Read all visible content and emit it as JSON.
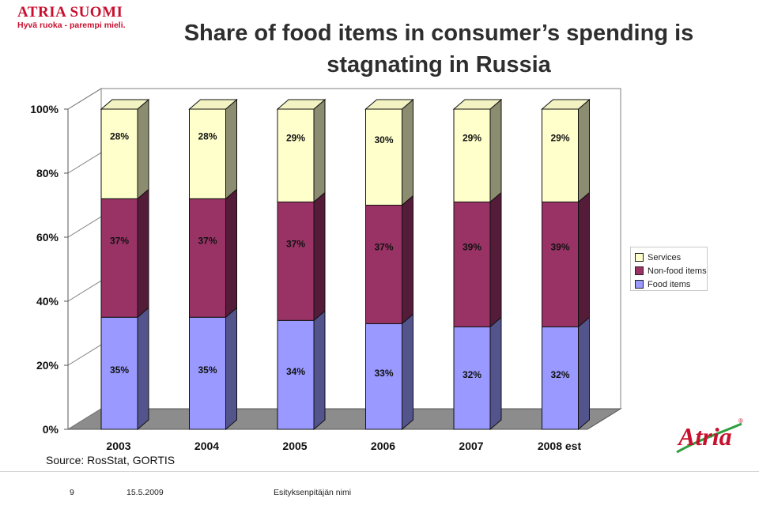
{
  "logo": {
    "brand": "ATRIA SUOMI",
    "tagline": "Hyvä ruoka - parempi mieli.",
    "color": "#c8102e"
  },
  "title_line1": "Share of food items in consumer’s spending is",
  "title_line2": "stagnating in Russia",
  "source": "Source: RosStat, GORTIS",
  "footer": {
    "page": "9",
    "date": "15.5.2009",
    "presenter": "Esityksenpitäjän nimi"
  },
  "bottom_logo": {
    "word": "Atria",
    "mark": "®"
  },
  "chart_data": {
    "type": "bar",
    "stacked": true,
    "percent_stacked": true,
    "three_d": true,
    "categories": [
      "2003",
      "2004",
      "2005",
      "2006",
      "2007",
      "2008 est"
    ],
    "series": [
      {
        "name": "Food items",
        "values": [
          35,
          35,
          34,
          33,
          32,
          32
        ],
        "color": "#9999ff",
        "labels": [
          "35%",
          "35%",
          "34%",
          "33%",
          "32%",
          "32%"
        ]
      },
      {
        "name": "Non-food items",
        "values": [
          37,
          37,
          37,
          37,
          39,
          39
        ],
        "color": "#993366",
        "labels": [
          "37%",
          "37%",
          "37%",
          "37%",
          "39%",
          "39%"
        ]
      },
      {
        "name": "Services",
        "values": [
          28,
          28,
          29,
          30,
          29,
          29
        ],
        "color": "#ffffcc",
        "labels": [
          "28%",
          "28%",
          "29%",
          "30%",
          "29%",
          "29%"
        ]
      }
    ],
    "legend_order": [
      "Services",
      "Non-food items",
      "Food items"
    ],
    "y_ticks": [
      "0%",
      "20%",
      "40%",
      "60%",
      "80%",
      "100%"
    ],
    "ylim": [
      0,
      100
    ],
    "legend_position": "right",
    "grid": false
  }
}
